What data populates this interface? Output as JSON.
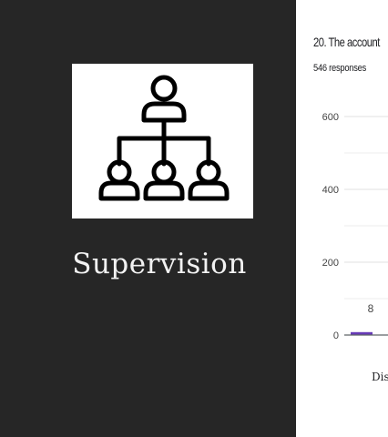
{
  "slide": {
    "title": "Supervision",
    "icon": "hierarchy-org-chart-icon"
  },
  "form": {
    "question": "20. The account",
    "responses": "546 responses"
  },
  "chart_data": {
    "type": "bar",
    "ylim": [
      0,
      600
    ],
    "yticks": [
      0,
      200,
      400,
      600
    ],
    "grid": true,
    "categories": [
      "Dis"
    ],
    "values": [
      8
    ],
    "data_labels": [
      "8"
    ],
    "bar_color": "#673ab7"
  }
}
